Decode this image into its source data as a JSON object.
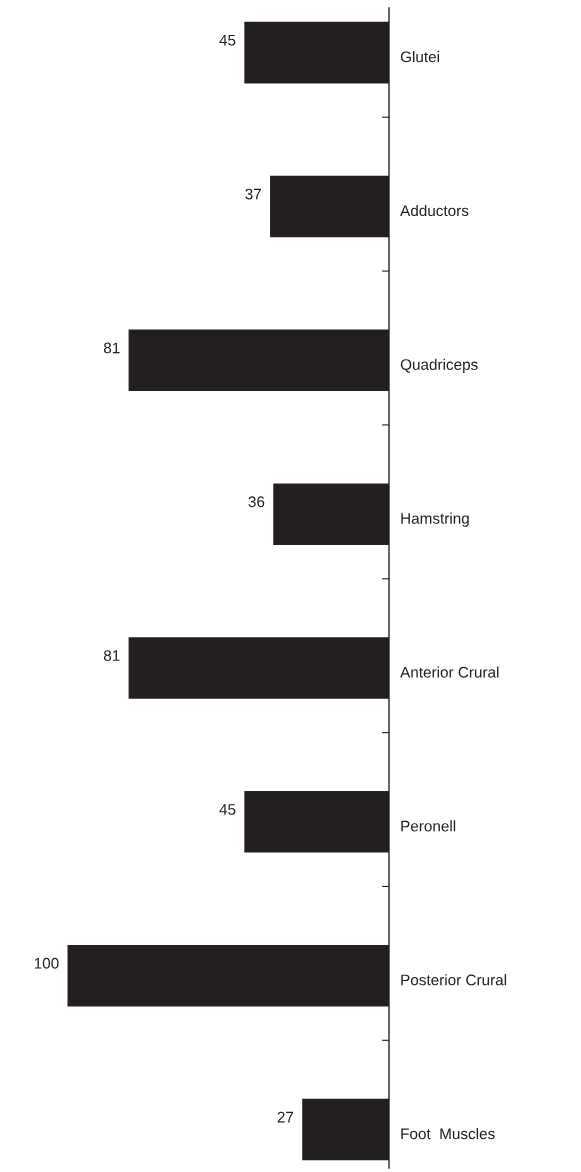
{
  "chart_data": {
    "type": "bar",
    "orientation": "horizontal",
    "categories": [
      "Glutei",
      "Adductors",
      "Quadriceps",
      "Hamstring",
      "Anterior Crural",
      "Peronell",
      "Posterior Crural",
      "Foot  Muscles"
    ],
    "values": [
      45,
      37,
      81,
      36,
      81,
      45,
      100,
      27
    ],
    "color": "#231f20",
    "data_labels": true
  }
}
